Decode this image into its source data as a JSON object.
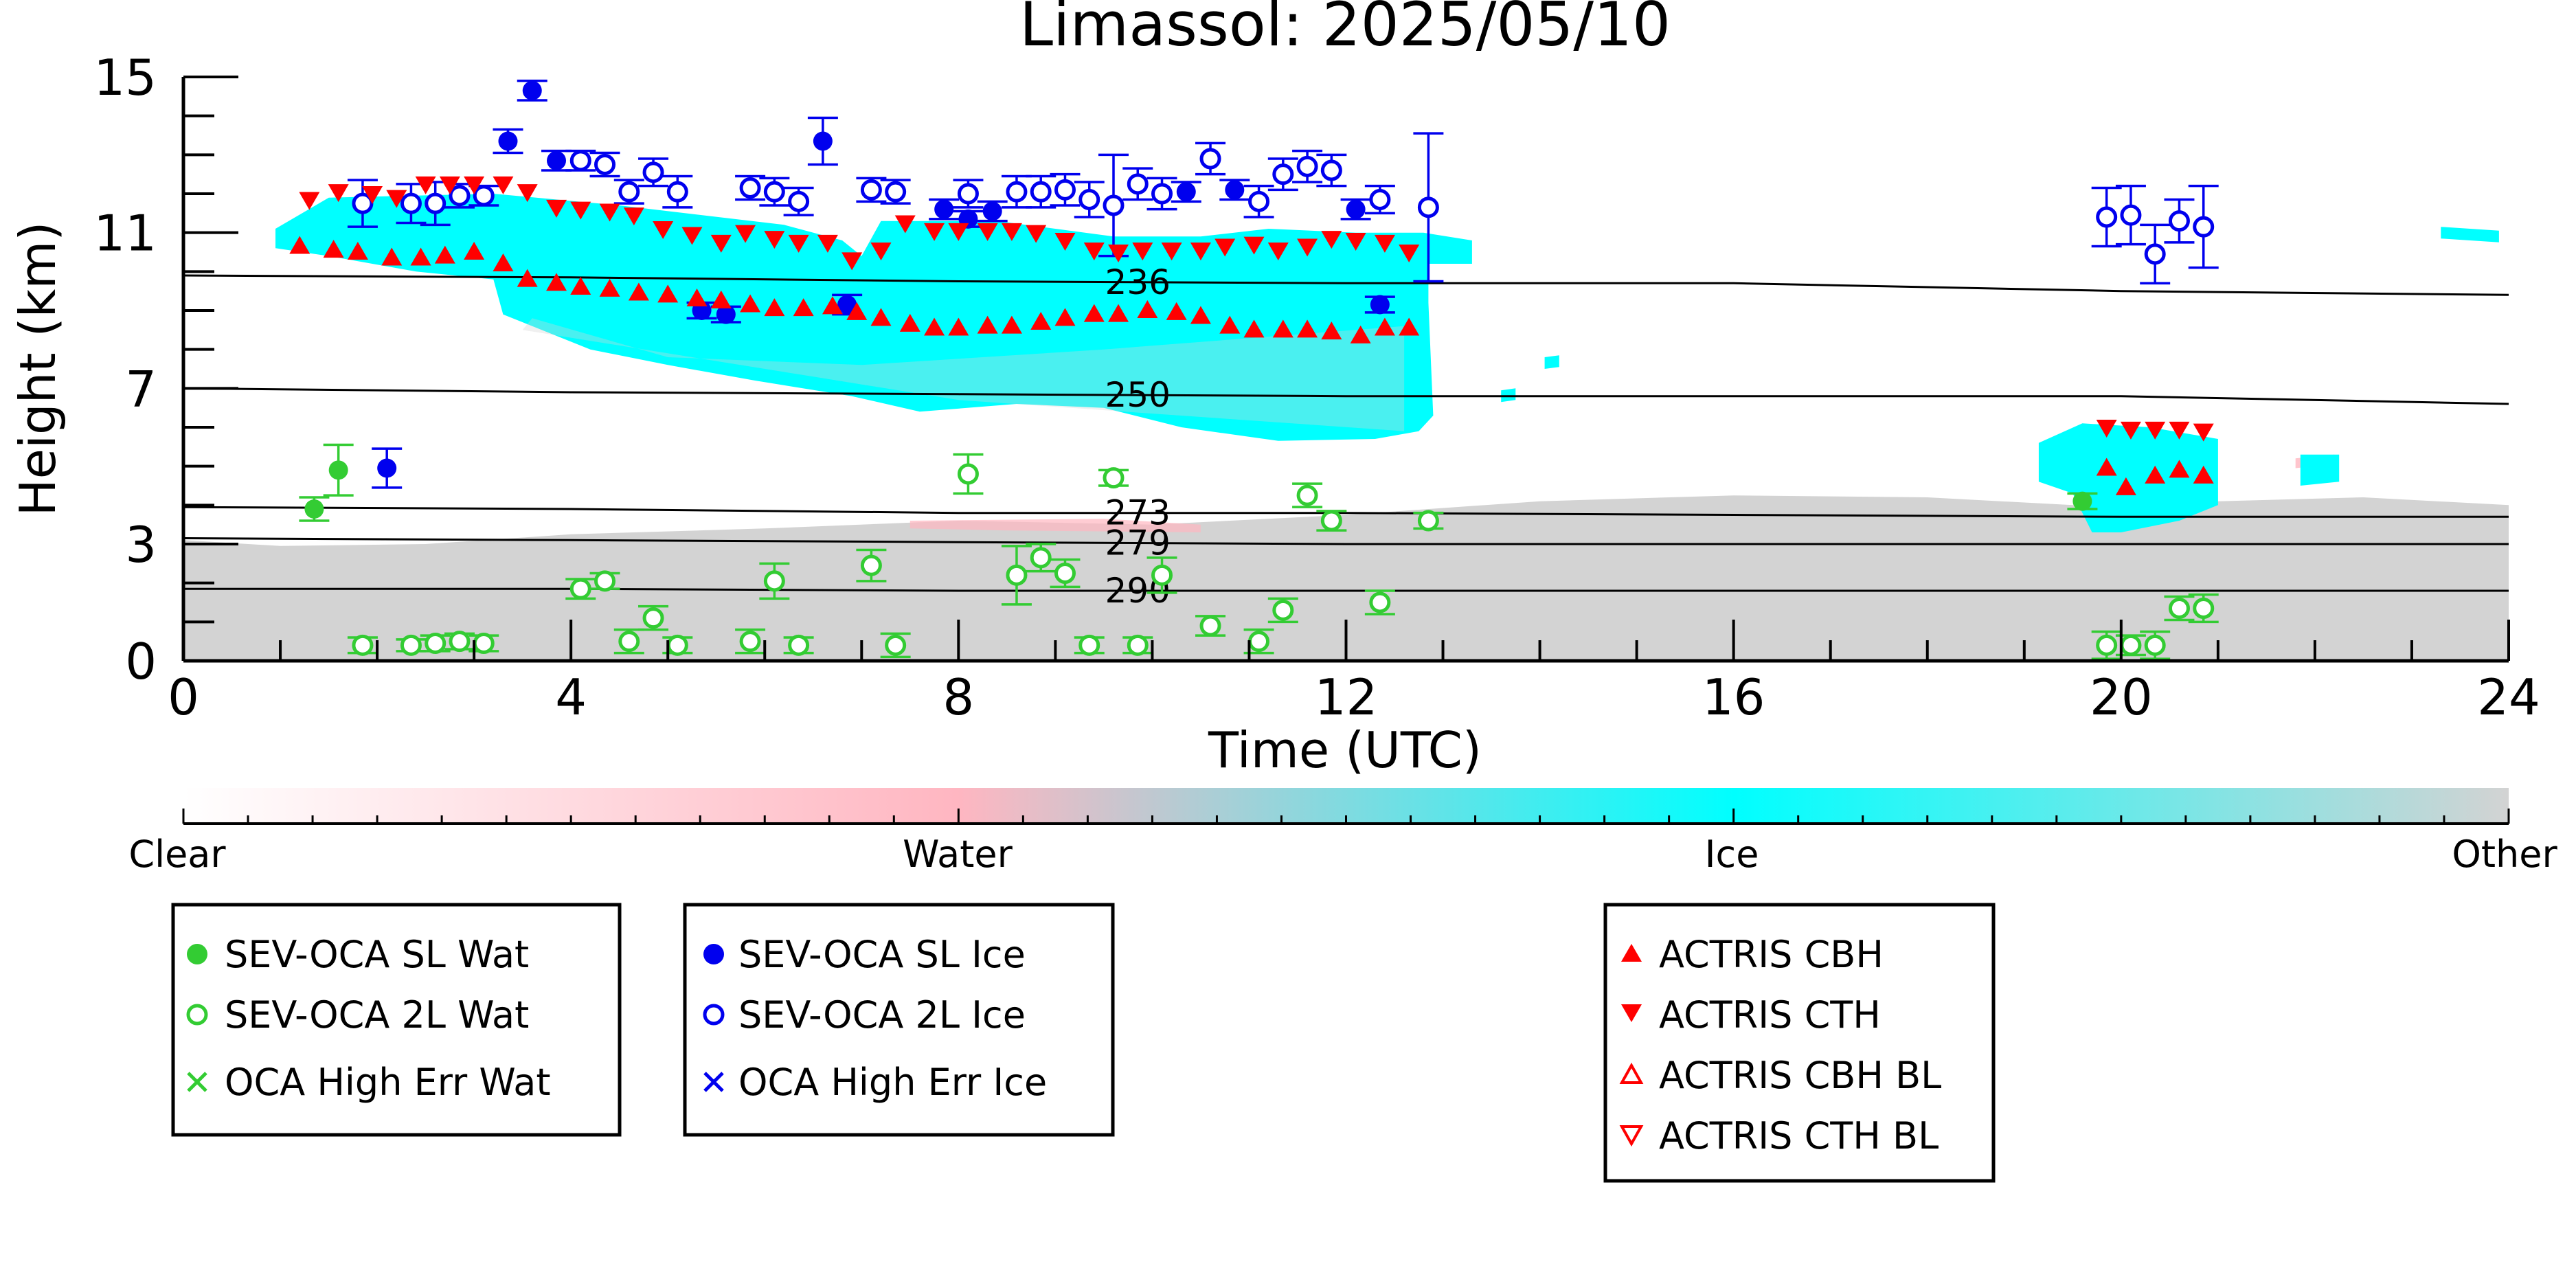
{
  "chart_data": {
    "type": "scatter",
    "title": "Limassol: 2025/05/10",
    "xlabel": "Time (UTC)",
    "ylabel": "Height (km)",
    "xlim": [
      0,
      24
    ],
    "ylim": [
      0,
      15
    ],
    "x_ticks": [
      0,
      4,
      8,
      12,
      16,
      20,
      24
    ],
    "y_ticks": [
      0,
      3,
      7,
      11,
      15
    ],
    "colorbar": {
      "labels": [
        "Clear",
        "Water",
        "Ice",
        "Other"
      ],
      "colors": [
        "#ffffff",
        "#ffb6c1",
        "#00ffff",
        "#d3d3d3"
      ]
    },
    "isotherms": [
      {
        "label": "236",
        "x": [
          0,
          4,
          8,
          12,
          16,
          20,
          24
        ],
        "y": [
          9.9,
          9.85,
          9.75,
          9.7,
          9.7,
          9.5,
          9.4
        ]
      },
      {
        "label": "250",
        "x": [
          0,
          4,
          8,
          12,
          16,
          20,
          24
        ],
        "y": [
          7.0,
          6.9,
          6.85,
          6.8,
          6.8,
          6.8,
          6.6
        ]
      },
      {
        "label": "273",
        "x": [
          0,
          4,
          8,
          12,
          16,
          20,
          24
        ],
        "y": [
          3.95,
          3.9,
          3.8,
          3.8,
          3.75,
          3.7,
          3.7
        ]
      },
      {
        "label": "279",
        "x": [
          0,
          4,
          8,
          12,
          16,
          20,
          24
        ],
        "y": [
          3.15,
          3.1,
          3.05,
          3.0,
          3.0,
          3.0,
          3.0
        ]
      },
      {
        "label": "290",
        "x": [
          0,
          4,
          8,
          12,
          16,
          20,
          24
        ],
        "y": [
          1.85,
          1.85,
          1.8,
          1.8,
          1.8,
          1.8,
          1.8
        ]
      }
    ],
    "colors": {
      "water": "#33cc33",
      "ice": "#0000ee",
      "actris": "#ff0000",
      "isotherm": "#000000",
      "clear": "#ffffff",
      "water_phase": "#ffb6c1",
      "ice_phase": "#00ffff",
      "other_phase": "#d3d3d3"
    },
    "series": [
      {
        "name": "SEV-OCA SL Wat",
        "marker": "filled-circle",
        "x": [
          1.35,
          1.6,
          19.6
        ],
        "y": [
          3.9,
          4.9,
          4.1
        ],
        "yerr": [
          0.3,
          0.65,
          0.2
        ]
      },
      {
        "name": "SEV-OCA 2L Wat",
        "marker": "open-circle",
        "x": [
          1.85,
          2.35,
          2.6,
          2.85,
          3.1,
          4.1,
          4.35,
          4.6,
          4.85,
          5.1,
          5.85,
          6.1,
          6.35,
          7.1,
          7.35,
          8.1,
          8.6,
          8.85,
          9.1,
          9.35,
          9.6,
          9.85,
          10.1,
          10.6,
          11.1,
          11.35,
          11.6,
          11.85,
          12.35,
          12.85,
          19.85,
          20.1,
          20.35,
          20.6,
          20.85
        ],
        "y": [
          0.4,
          0.4,
          0.45,
          0.5,
          0.45,
          1.85,
          2.05,
          0.5,
          1.1,
          0.4,
          0.5,
          2.05,
          0.4,
          2.45,
          0.4,
          4.8,
          2.2,
          2.65,
          2.25,
          0.4,
          4.7,
          0.4,
          2.2,
          0.9,
          0.5,
          1.3,
          4.25,
          3.6,
          1.5,
          3.6,
          0.4,
          0.4,
          0.4,
          1.35,
          1.35
        ],
        "yerr": [
          0.2,
          0.15,
          0.2,
          0.2,
          0.2,
          0.25,
          0.2,
          0.3,
          0.3,
          0.2,
          0.3,
          0.45,
          0.2,
          0.4,
          0.3,
          0.5,
          0.75,
          0.35,
          0.35,
          0.2,
          0.2,
          0.2,
          0.45,
          0.25,
          0.3,
          0.3,
          0.3,
          0.25,
          0.3,
          0.2,
          0.35,
          0.25,
          0.35,
          0.3,
          0.35
        ]
      },
      {
        "name": "OCA High Err Wat",
        "marker": "x",
        "x": [],
        "y": []
      },
      {
        "name": "SEV-OCA SL Ice",
        "marker": "filled-circle",
        "x": [
          2.1,
          3.35,
          3.6,
          3.85,
          5.35,
          5.6,
          6.6,
          6.85,
          7.85,
          8.1,
          8.35,
          10.35,
          10.85,
          12.1,
          12.35
        ],
        "y": [
          4.95,
          13.35,
          14.65,
          12.85,
          9.0,
          8.9,
          13.35,
          9.15,
          11.6,
          11.35,
          11.55,
          12.05,
          12.1,
          11.6,
          9.15
        ],
        "yerr": [
          0.5,
          0.3,
          0.25,
          0.25,
          0.2,
          0.2,
          0.6,
          0.25,
          0.25,
          0.2,
          0.25,
          0.25,
          0.25,
          0.25,
          0.2
        ]
      },
      {
        "name": "SEV-OCA 2L Ice",
        "marker": "open-circle",
        "x": [
          1.85,
          2.35,
          2.6,
          2.85,
          3.1,
          4.1,
          4.35,
          4.6,
          4.85,
          5.1,
          5.85,
          6.1,
          6.35,
          7.1,
          7.35,
          8.1,
          8.6,
          8.85,
          9.1,
          9.35,
          9.6,
          9.85,
          10.1,
          10.6,
          11.1,
          11.35,
          11.6,
          11.85,
          12.35,
          12.85,
          19.85,
          20.1,
          20.35,
          20.6,
          20.85
        ],
        "y": [
          11.75,
          11.75,
          11.75,
          11.95,
          11.95,
          12.85,
          12.75,
          12.05,
          12.55,
          12.05,
          12.15,
          12.05,
          11.8,
          12.1,
          12.05,
          12.0,
          12.05,
          12.05,
          12.1,
          11.85,
          11.7,
          12.25,
          12.0,
          12.9,
          11.8,
          12.5,
          12.7,
          12.6,
          11.85,
          11.65,
          11.4,
          11.45,
          10.45,
          11.3,
          11.15
        ],
        "yerr": [
          0.6,
          0.5,
          0.55,
          0.3,
          0.25,
          0.25,
          0.3,
          0.3,
          0.35,
          0.4,
          0.3,
          0.35,
          0.35,
          0.3,
          0.3,
          0.35,
          0.4,
          0.4,
          0.4,
          0.45,
          1.3,
          0.4,
          0.4,
          0.4,
          0.4,
          0.4,
          0.4,
          0.4,
          0.35,
          1.9,
          0.75,
          0.75,
          0.75,
          0.55,
          1.05
        ]
      },
      {
        "name": "OCA High Err Ice",
        "marker": "x",
        "x": [],
        "y": []
      },
      {
        "name": "ACTRIS CBH",
        "marker": "triangle-up",
        "x": [
          1.2,
          1.55,
          1.8,
          2.15,
          2.45,
          2.7,
          3.0,
          3.3,
          3.55,
          3.85,
          4.1,
          4.4,
          4.7,
          5.0,
          5.3,
          5.55,
          5.85,
          6.1,
          6.4,
          6.7,
          6.95,
          7.2,
          7.5,
          7.75,
          8.0,
          8.3,
          8.55,
          8.85,
          9.1,
          9.4,
          9.65,
          9.95,
          10.25,
          10.5,
          10.8,
          11.05,
          11.35,
          11.6,
          11.85,
          12.15,
          12.4,
          12.65,
          19.85,
          20.05,
          20.35,
          20.6,
          20.85
        ],
        "y": [
          10.65,
          10.55,
          10.5,
          10.35,
          10.35,
          10.4,
          10.5,
          10.2,
          9.8,
          9.7,
          9.6,
          9.55,
          9.45,
          9.4,
          9.3,
          9.25,
          9.15,
          9.05,
          9.05,
          9.1,
          8.95,
          8.8,
          8.65,
          8.55,
          8.55,
          8.6,
          8.6,
          8.7,
          8.8,
          8.9,
          8.9,
          9.0,
          8.95,
          8.85,
          8.6,
          8.5,
          8.5,
          8.5,
          8.45,
          8.35,
          8.55,
          8.55,
          4.95,
          4.45,
          4.75,
          4.9,
          4.75
        ]
      },
      {
        "name": "ACTRIS CTH",
        "marker": "triangle-down",
        "x": [
          1.3,
          1.6,
          1.95,
          2.2,
          2.5,
          2.75,
          3.0,
          3.3,
          3.55,
          3.85,
          4.1,
          4.4,
          4.65,
          4.95,
          5.25,
          5.55,
          5.8,
          6.1,
          6.35,
          6.65,
          6.9,
          7.2,
          7.45,
          7.75,
          8.0,
          8.3,
          8.55,
          8.8,
          9.1,
          9.4,
          9.65,
          9.9,
          10.2,
          10.5,
          10.75,
          11.05,
          11.3,
          11.6,
          11.85,
          12.1,
          12.4,
          12.65,
          19.85,
          20.1,
          20.35,
          20.6,
          20.85
        ],
        "y": [
          11.85,
          12.05,
          12.0,
          11.9,
          12.25,
          12.25,
          12.25,
          12.25,
          12.05,
          11.65,
          11.6,
          11.55,
          11.45,
          11.1,
          10.95,
          10.75,
          11.0,
          10.85,
          10.75,
          10.75,
          10.3,
          10.55,
          11.25,
          11.05,
          11.05,
          11.05,
          11.05,
          11.0,
          10.8,
          10.55,
          10.5,
          10.55,
          10.55,
          10.55,
          10.65,
          10.7,
          10.55,
          10.65,
          10.85,
          10.8,
          10.75,
          10.5,
          6.0,
          5.95,
          5.95,
          5.95,
          5.9
        ]
      },
      {
        "name": "ACTRIS CBH BL",
        "marker": "triangle-up-open",
        "x": [],
        "y": []
      },
      {
        "name": "ACTRIS CTH BL",
        "marker": "triangle-down-open",
        "x": [],
        "y": []
      }
    ]
  }
}
